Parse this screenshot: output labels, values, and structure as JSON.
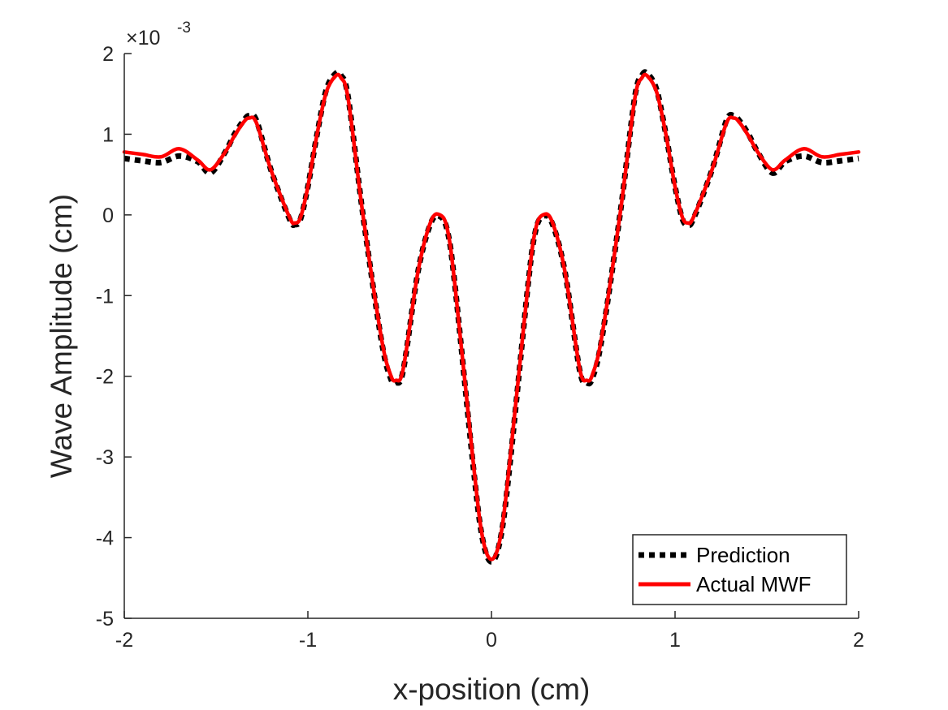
{
  "chart_data": {
    "type": "line",
    "xlabel": "x-position (cm)",
    "ylabel": "Wave Amplitude (cm)",
    "exponent": {
      "base": "×10",
      "power": "-3"
    },
    "xlim": [
      -2,
      2
    ],
    "ylim": [
      -5,
      2
    ],
    "y_scale_factor": 0.001,
    "xticks": [
      -2,
      -1,
      0,
      1,
      2
    ],
    "xtick_labels": [
      "-2",
      "-1",
      "0",
      "1",
      "2"
    ],
    "yticks": [
      -5,
      -4,
      -3,
      -2,
      -1,
      0,
      1,
      2
    ],
    "ytick_labels": [
      "-5",
      "-4",
      "-3",
      "-2",
      "-1",
      "0",
      "1",
      "2"
    ],
    "grid": false,
    "legend_position": "bottom-right",
    "series": [
      {
        "name": "Prediction",
        "color": "#000000",
        "style": "dotted",
        "x": [
          -2.0,
          -1.9,
          -1.8,
          -1.7,
          -1.6,
          -1.53,
          -1.45,
          -1.4,
          -1.35,
          -1.32,
          -1.28,
          -1.2,
          -1.1,
          -1.07,
          -1.04,
          -1.0,
          -0.95,
          -0.9,
          -0.85,
          -0.82,
          -0.78,
          -0.7,
          -0.6,
          -0.55,
          -0.52,
          -0.48,
          -0.4,
          -0.33,
          -0.28,
          -0.24,
          -0.2,
          -0.1,
          -0.05,
          0.0,
          0.05,
          0.1,
          0.2,
          0.24,
          0.28,
          0.33,
          0.4,
          0.48,
          0.52,
          0.55,
          0.6,
          0.7,
          0.78,
          0.82,
          0.85,
          0.9,
          0.95,
          1.0,
          1.04,
          1.07,
          1.1,
          1.2,
          1.28,
          1.32,
          1.35,
          1.4,
          1.45,
          1.53,
          1.6,
          1.7,
          1.8,
          1.9,
          2.0
        ],
        "y": [
          0.7,
          0.67,
          0.65,
          0.73,
          0.66,
          0.52,
          0.78,
          1.0,
          1.17,
          1.23,
          1.17,
          0.55,
          -0.05,
          -0.12,
          -0.05,
          0.35,
          1.0,
          1.55,
          1.75,
          1.73,
          1.45,
          0.0,
          -1.55,
          -2.02,
          -2.08,
          -1.92,
          -0.7,
          -0.1,
          -0.02,
          -0.2,
          -0.85,
          -3.1,
          -4.0,
          -4.3,
          -4.0,
          -3.1,
          -0.85,
          -0.2,
          -0.02,
          -0.1,
          -0.7,
          -1.92,
          -2.08,
          -2.02,
          -1.55,
          0.0,
          1.45,
          1.73,
          1.75,
          1.55,
          1.0,
          0.35,
          -0.05,
          -0.12,
          -0.05,
          0.55,
          1.17,
          1.23,
          1.17,
          1.0,
          0.78,
          0.52,
          0.66,
          0.73,
          0.65,
          0.67,
          0.7
        ]
      },
      {
        "name": "Actual MWF",
        "color": "#ff0000",
        "style": "solid",
        "x": [
          -2.0,
          -1.9,
          -1.8,
          -1.7,
          -1.6,
          -1.53,
          -1.45,
          -1.4,
          -1.35,
          -1.32,
          -1.28,
          -1.2,
          -1.1,
          -1.07,
          -1.04,
          -1.0,
          -0.95,
          -0.9,
          -0.85,
          -0.82,
          -0.78,
          -0.7,
          -0.6,
          -0.55,
          -0.52,
          -0.48,
          -0.4,
          -0.33,
          -0.28,
          -0.24,
          -0.2,
          -0.1,
          -0.05,
          0.0,
          0.05,
          0.1,
          0.2,
          0.24,
          0.28,
          0.33,
          0.4,
          0.48,
          0.52,
          0.55,
          0.6,
          0.7,
          0.78,
          0.82,
          0.85,
          0.9,
          0.95,
          1.0,
          1.04,
          1.07,
          1.1,
          1.2,
          1.28,
          1.32,
          1.35,
          1.4,
          1.45,
          1.53,
          1.6,
          1.7,
          1.8,
          1.9,
          2.0
        ],
        "y": [
          0.78,
          0.75,
          0.72,
          0.82,
          0.68,
          0.56,
          0.78,
          0.98,
          1.15,
          1.2,
          1.14,
          0.55,
          -0.03,
          -0.1,
          -0.03,
          0.35,
          1.0,
          1.52,
          1.72,
          1.7,
          1.43,
          0.0,
          -1.52,
          -1.98,
          -2.05,
          -1.9,
          -0.7,
          -0.08,
          0.0,
          -0.18,
          -0.85,
          -3.05,
          -3.98,
          -4.27,
          -3.98,
          -3.05,
          -0.85,
          -0.18,
          0.0,
          -0.08,
          -0.7,
          -1.9,
          -2.05,
          -1.98,
          -1.52,
          0.0,
          1.43,
          1.7,
          1.72,
          1.52,
          1.0,
          0.35,
          -0.03,
          -0.1,
          -0.03,
          0.55,
          1.14,
          1.2,
          1.15,
          0.98,
          0.78,
          0.56,
          0.68,
          0.82,
          0.72,
          0.75,
          0.78
        ]
      }
    ]
  }
}
